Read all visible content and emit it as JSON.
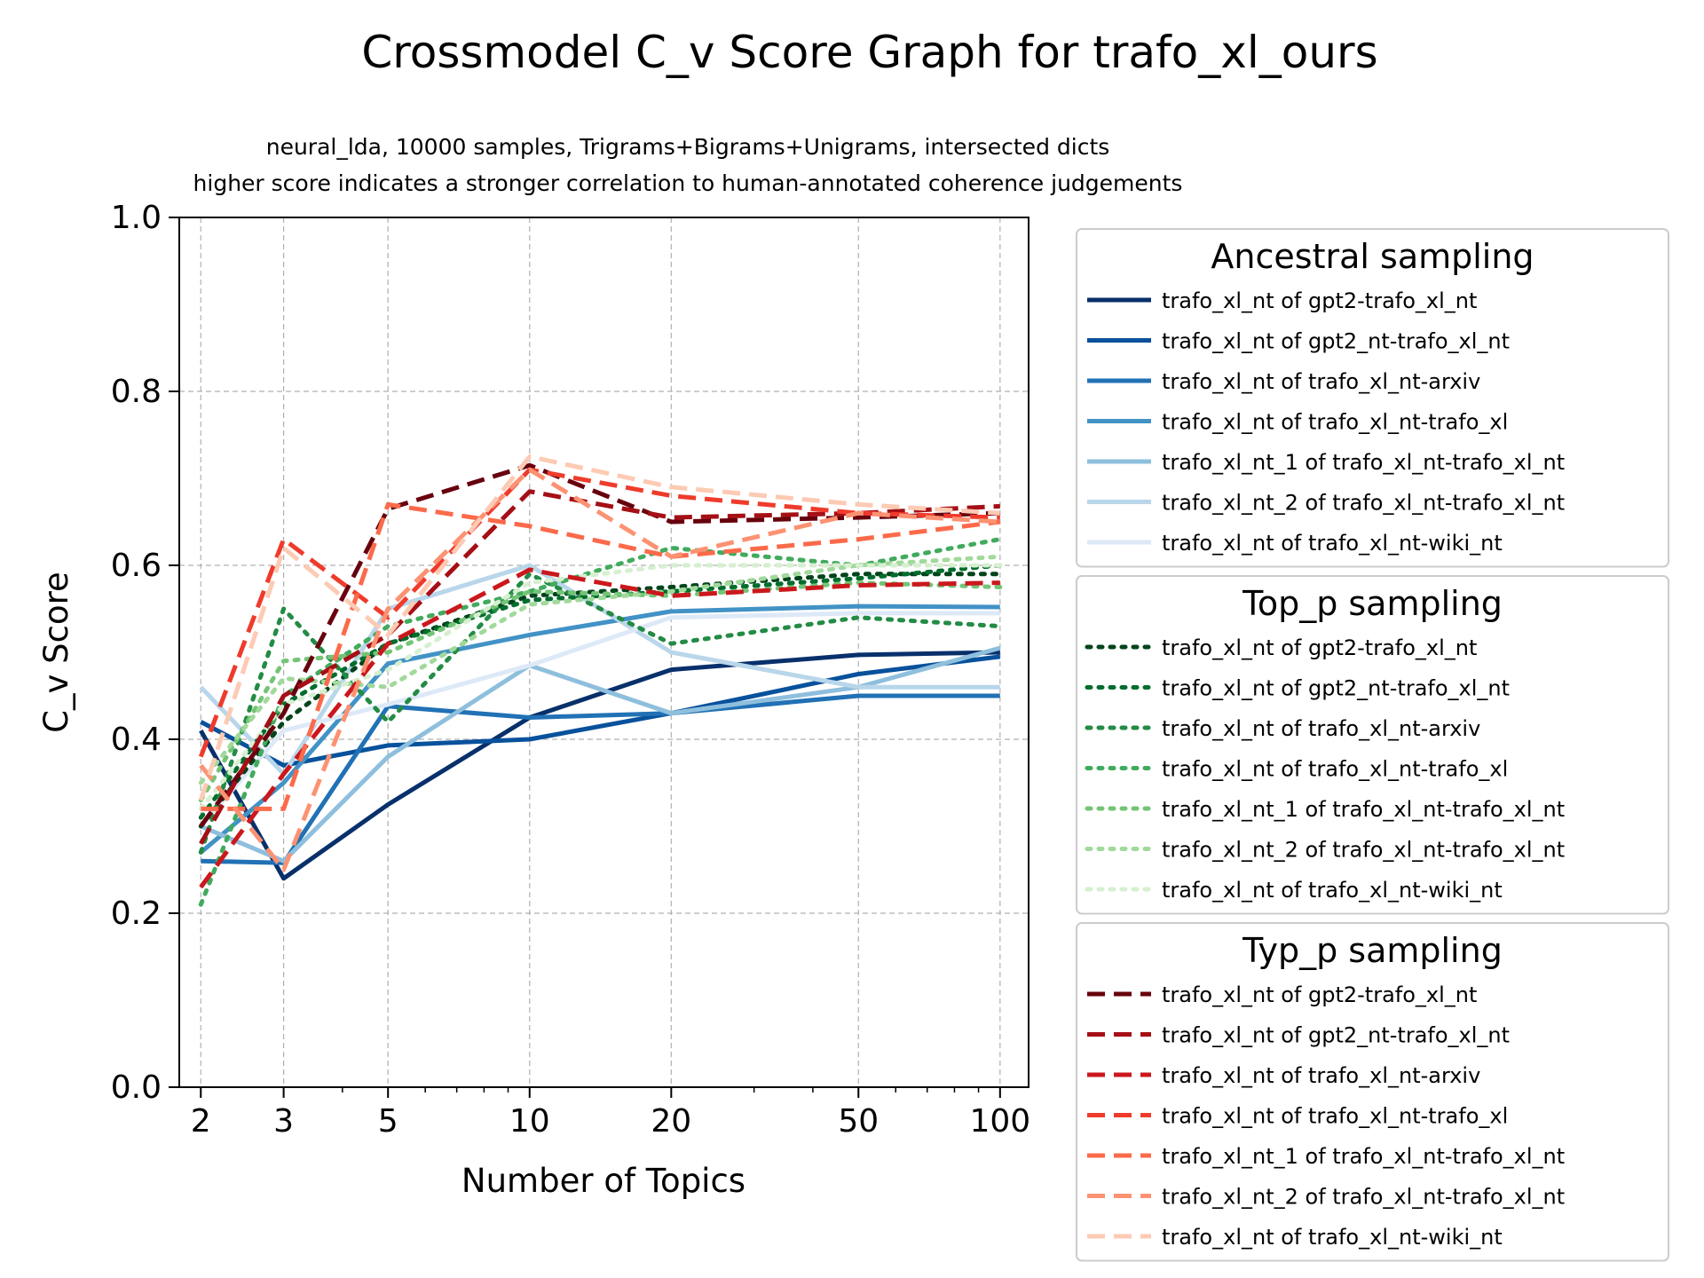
{
  "chart_data": {
    "type": "line",
    "title": "Crossmodel C_v Score Graph for trafo_xl_ours",
    "subtitle_lines": [
      "neural_lda, 10000 samples, Trigrams+Bigrams+Unigrams, intersected dicts",
      "higher score indicates a stronger correlation to human-annotated coherence judgements"
    ],
    "xlabel": "Number of Topics",
    "ylabel": "C_v Score",
    "x_scale": "log",
    "x": [
      2,
      3,
      5,
      10,
      20,
      50,
      100
    ],
    "x_tick_labels": [
      "2",
      "3",
      "5",
      "10",
      "20",
      "50",
      "100"
    ],
    "y_ticks": [
      0.0,
      0.2,
      0.4,
      0.6,
      0.8,
      1.0
    ],
    "y_tick_labels": [
      "0.0",
      "0.2",
      "0.4",
      "0.6",
      "0.8",
      "1.0"
    ],
    "ylim": [
      0,
      1
    ],
    "grid": true,
    "legend_placement": "outside right",
    "groups": [
      {
        "title": "Ancestral sampling",
        "style": "solid",
        "series": [
          {
            "name": "trafo_xl_nt of gpt2-trafo_xl_nt",
            "color": "#08306b",
            "values": [
              0.41,
              0.24,
              0.325,
              0.425,
              0.48,
              0.497,
              0.5
            ]
          },
          {
            "name": "trafo_xl_nt of gpt2_nt-trafo_xl_nt",
            "color": "#08519c",
            "values": [
              0.42,
              0.37,
              0.393,
              0.4,
              0.43,
              0.475,
              0.495
            ]
          },
          {
            "name": "trafo_xl_nt of trafo_xl_nt-arxiv",
            "color": "#2171b5",
            "values": [
              0.26,
              0.258,
              0.438,
              0.425,
              0.43,
              0.45,
              0.45
            ]
          },
          {
            "name": "trafo_xl_nt of trafo_xl_nt-trafo_xl",
            "color": "#4292c6",
            "values": [
              0.27,
              0.35,
              0.487,
              0.52,
              0.547,
              0.553,
              0.552
            ]
          },
          {
            "name": "trafo_xl_nt_1 of trafo_xl_nt-trafo_xl_nt",
            "color": "#8ebfdd",
            "values": [
              0.3,
              0.26,
              0.38,
              0.485,
              0.43,
              0.46,
              0.505
            ]
          },
          {
            "name": "trafo_xl_nt_2 of trafo_xl_nt-trafo_xl_nt",
            "color": "#b9d6ea",
            "values": [
              0.46,
              0.36,
              0.55,
              0.6,
              0.5,
              0.46,
              0.46
            ]
          },
          {
            "name": "trafo_xl_nt of trafo_xl_nt-wiki_nt",
            "color": "#dde9f7",
            "values": [
              0.3,
              0.41,
              0.44,
              0.485,
              0.54,
              0.545,
              0.545
            ]
          }
        ]
      },
      {
        "title": "Top_p sampling",
        "style": "dotted",
        "series": [
          {
            "name": "trafo_xl_nt of gpt2-trafo_xl_nt",
            "color": "#00441b",
            "values": [
              0.3,
              0.42,
              0.51,
              0.565,
              0.575,
              0.59,
              0.59
            ]
          },
          {
            "name": "trafo_xl_nt of gpt2_nt-trafo_xl_nt",
            "color": "#006d2c",
            "values": [
              0.31,
              0.44,
              0.51,
              0.56,
              0.57,
              0.585,
              0.6
            ]
          },
          {
            "name": "trafo_xl_nt of trafo_xl_nt-arxiv",
            "color": "#238b45",
            "values": [
              0.27,
              0.55,
              0.42,
              0.59,
              0.51,
              0.54,
              0.53
            ]
          },
          {
            "name": "trafo_xl_nt of trafo_xl_nt-trafo_xl",
            "color": "#41ab5d",
            "values": [
              0.21,
              0.45,
              0.53,
              0.57,
              0.62,
              0.6,
              0.63
            ]
          },
          {
            "name": "trafo_xl_nt_1 of trafo_xl_nt-trafo_xl_nt",
            "color": "#74c476",
            "values": [
              0.33,
              0.49,
              0.5,
              0.57,
              0.565,
              0.58,
              0.575
            ]
          },
          {
            "name": "trafo_xl_nt_2 of trafo_xl_nt-trafo_xl_nt",
            "color": "#a1d99b",
            "values": [
              0.35,
              0.47,
              0.46,
              0.555,
              0.57,
              0.6,
              0.61
            ]
          },
          {
            "name": "trafo_xl_nt of trafo_xl_nt-wiki_nt",
            "color": "#d6efd0",
            "values": [
              0.32,
              0.44,
              0.48,
              0.58,
              0.6,
              0.6,
              0.6
            ]
          }
        ]
      },
      {
        "title": "Typ_p sampling",
        "style": "dashed",
        "series": [
          {
            "name": "trafo_xl_nt of gpt2-trafo_xl_nt",
            "color": "#67000d",
            "values": [
              0.3,
              0.43,
              0.665,
              0.715,
              0.65,
              0.655,
              0.66
            ]
          },
          {
            "name": "trafo_xl_nt of gpt2_nt-trafo_xl_nt",
            "color": "#a50f15",
            "values": [
              0.28,
              0.45,
              0.52,
              0.685,
              0.655,
              0.66,
              0.668
            ]
          },
          {
            "name": "trafo_xl_nt of trafo_xl_nt-arxiv",
            "color": "#cb181d",
            "values": [
              0.23,
              0.36,
              0.51,
              0.595,
              0.565,
              0.577,
              0.58
            ]
          },
          {
            "name": "trafo_xl_nt of trafo_xl_nt-trafo_xl",
            "color": "#ef3b2c",
            "values": [
              0.38,
              0.63,
              0.54,
              0.71,
              0.68,
              0.66,
              0.655
            ]
          },
          {
            "name": "trafo_xl_nt_1 of trafo_xl_nt-trafo_xl_nt",
            "color": "#fb6a4a",
            "values": [
              0.32,
              0.32,
              0.67,
              0.645,
              0.61,
              0.63,
              0.65
            ]
          },
          {
            "name": "trafo_xl_nt_2 of trafo_xl_nt-trafo_xl_nt",
            "color": "#fc9272",
            "values": [
              0.37,
              0.25,
              0.55,
              0.71,
              0.61,
              0.66,
              0.65
            ]
          },
          {
            "name": "trafo_xl_nt of trafo_xl_nt-wiki_nt",
            "color": "#fdcab3",
            "values": [
              0.33,
              0.62,
              0.52,
              0.725,
              0.69,
              0.67,
              0.66
            ]
          }
        ]
      }
    ]
  }
}
